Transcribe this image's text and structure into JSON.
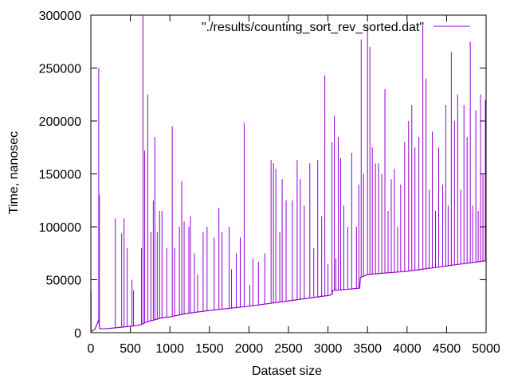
{
  "chart_data": {
    "type": "line",
    "title": "",
    "xlabel": "Dataset size",
    "ylabel": "Time, nanosec",
    "xlim": [
      0,
      5000
    ],
    "ylim": [
      0,
      300000
    ],
    "x_ticks": [
      0,
      500,
      1000,
      1500,
      2000,
      2500,
      3000,
      3500,
      4000,
      4500,
      5000
    ],
    "y_ticks": [
      0,
      50000,
      100000,
      150000,
      200000,
      250000,
      300000
    ],
    "grid": false,
    "legend_position": "top-right",
    "series": [
      {
        "name": "\"./results/counting_sort_rev_sorted.dat\"",
        "color": "#9400d3",
        "baseline": [
          [
            1,
            1000
          ],
          [
            50,
            3000
          ],
          [
            100,
            12000
          ],
          [
            110,
            4000
          ],
          [
            150,
            3500
          ],
          [
            300,
            4500
          ],
          [
            500,
            6000
          ],
          [
            600,
            7000
          ],
          [
            650,
            8000
          ],
          [
            700,
            10000
          ],
          [
            800,
            12000
          ],
          [
            900,
            14000
          ],
          [
            1000,
            15000
          ],
          [
            1200,
            18000
          ],
          [
            1500,
            21000
          ],
          [
            2000,
            25000
          ],
          [
            2500,
            30000
          ],
          [
            3000,
            35000
          ],
          [
            3050,
            36000
          ],
          [
            3060,
            40000
          ],
          [
            3100,
            40000
          ],
          [
            3400,
            42000
          ],
          [
            3410,
            52000
          ],
          [
            3500,
            55000
          ],
          [
            4000,
            58000
          ],
          [
            4500,
            63000
          ],
          [
            5000,
            68000
          ]
        ],
        "spikes": [
          [
            5,
            40000
          ],
          [
            100,
            250000
          ],
          [
            108,
            130000
          ],
          [
            310,
            108000
          ],
          [
            390,
            94000
          ],
          [
            420,
            108000
          ],
          [
            460,
            80000
          ],
          [
            520,
            50000
          ],
          [
            540,
            40000
          ],
          [
            640,
            80000
          ],
          [
            660,
            300000
          ],
          [
            680,
            172000
          ],
          [
            720,
            225000
          ],
          [
            760,
            95000
          ],
          [
            790,
            125000
          ],
          [
            810,
            185000
          ],
          [
            840,
            95000
          ],
          [
            870,
            115000
          ],
          [
            900,
            115000
          ],
          [
            960,
            80000
          ],
          [
            1030,
            195000
          ],
          [
            1060,
            80000
          ],
          [
            1120,
            100000
          ],
          [
            1150,
            143000
          ],
          [
            1180,
            105000
          ],
          [
            1240,
            100000
          ],
          [
            1260,
            110000
          ],
          [
            1310,
            75000
          ],
          [
            1350,
            55000
          ],
          [
            1420,
            95000
          ],
          [
            1470,
            100000
          ],
          [
            1560,
            90000
          ],
          [
            1620,
            118000
          ],
          [
            1660,
            95000
          ],
          [
            1750,
            100000
          ],
          [
            1780,
            60000
          ],
          [
            1840,
            75000
          ],
          [
            1890,
            90000
          ],
          [
            1940,
            198000
          ],
          [
            2010,
            45000
          ],
          [
            2050,
            70000
          ],
          [
            2120,
            67000
          ],
          [
            2200,
            75000
          ],
          [
            2280,
            163000
          ],
          [
            2310,
            160000
          ],
          [
            2340,
            155000
          ],
          [
            2390,
            95000
          ],
          [
            2420,
            145000
          ],
          [
            2470,
            125000
          ],
          [
            2550,
            125000
          ],
          [
            2610,
            163000
          ],
          [
            2650,
            145000
          ],
          [
            2700,
            120000
          ],
          [
            2770,
            160000
          ],
          [
            2820,
            80000
          ],
          [
            2870,
            163000
          ],
          [
            2920,
            110000
          ],
          [
            2960,
            243000
          ],
          [
            3000,
            65000
          ],
          [
            3050,
            180000
          ],
          [
            3080,
            205000
          ],
          [
            3100,
            70000
          ],
          [
            3130,
            185000
          ],
          [
            3160,
            165000
          ],
          [
            3200,
            120000
          ],
          [
            3250,
            100000
          ],
          [
            3300,
            170000
          ],
          [
            3360,
            100000
          ],
          [
            3390,
            140000
          ],
          [
            3420,
            277000
          ],
          [
            3450,
            150000
          ],
          [
            3500,
            290000
          ],
          [
            3530,
            270000
          ],
          [
            3560,
            175000
          ],
          [
            3600,
            160000
          ],
          [
            3640,
            160000
          ],
          [
            3680,
            150000
          ],
          [
            3720,
            230000
          ],
          [
            3760,
            115000
          ],
          [
            3800,
            145000
          ],
          [
            3840,
            155000
          ],
          [
            3880,
            100000
          ],
          [
            3920,
            140000
          ],
          [
            3970,
            180000
          ],
          [
            4020,
            200000
          ],
          [
            4060,
            215000
          ],
          [
            4100,
            175000
          ],
          [
            4150,
            185000
          ],
          [
            4200,
            290000
          ],
          [
            4240,
            240000
          ],
          [
            4280,
            135000
          ],
          [
            4320,
            190000
          ],
          [
            4360,
            115000
          ],
          [
            4400,
            175000
          ],
          [
            4450,
            140000
          ],
          [
            4490,
            215000
          ],
          [
            4520,
            120000
          ],
          [
            4560,
            265000
          ],
          [
            4600,
            200000
          ],
          [
            4640,
            225000
          ],
          [
            4680,
            135000
          ],
          [
            4720,
            215000
          ],
          [
            4760,
            185000
          ],
          [
            4800,
            275000
          ],
          [
            4830,
            120000
          ],
          [
            4870,
            210000
          ],
          [
            4900,
            115000
          ],
          [
            4930,
            225000
          ],
          [
            4960,
            150000
          ],
          [
            4990,
            220000
          ]
        ]
      }
    ]
  }
}
